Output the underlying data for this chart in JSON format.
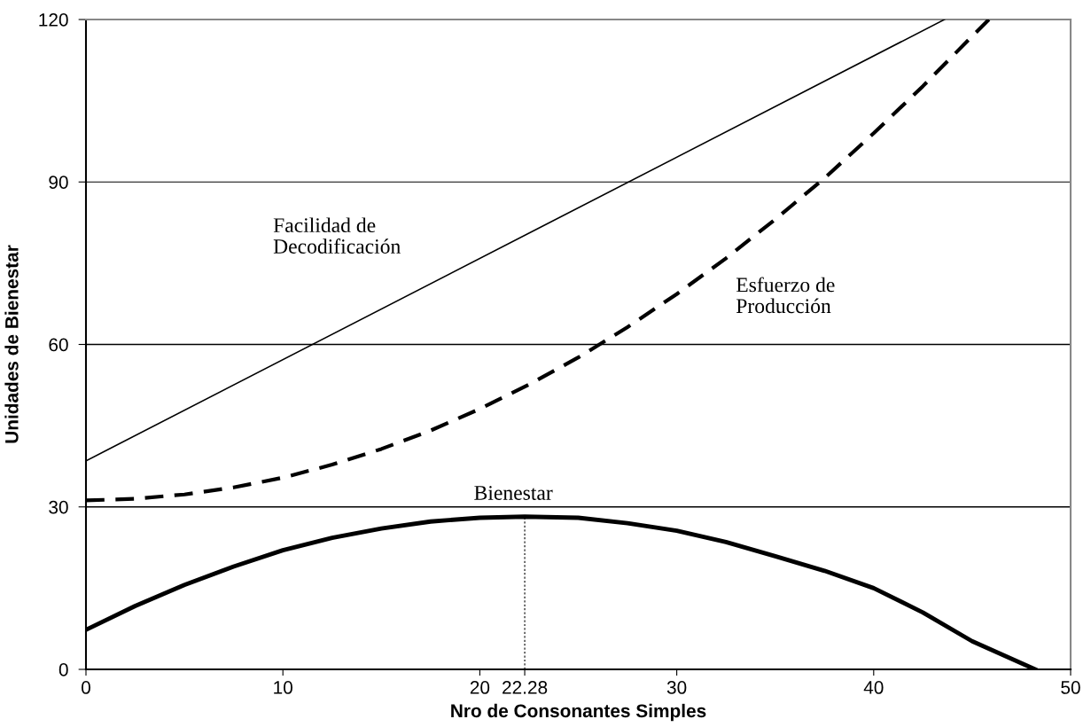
{
  "chart_data": {
    "type": "line",
    "xlabel": "Nro de Consonantes Simples",
    "ylabel": "Unidades de Bienestar",
    "xlim": [
      0,
      50
    ],
    "xticks": [
      0,
      10,
      20,
      22.28,
      30,
      40,
      50
    ],
    "ylim": [
      0,
      120
    ],
    "yticks": [
      0,
      30,
      60,
      90,
      120
    ],
    "grid": "y",
    "marker": "none",
    "series": [
      {
        "name": "Facilidad de Decodificación",
        "color": "#000000",
        "line_style": "solid",
        "x": [
          0,
          43.6
        ],
        "values": [
          38.5,
          120
        ]
      },
      {
        "name": "Esfuerzo de Producción",
        "color": "#000000",
        "line_style": "dashed",
        "x": [
          0,
          2.5,
          5,
          7.5,
          10,
          12.5,
          15,
          17.5,
          20,
          22.5,
          25,
          27.5,
          30,
          32.5,
          35,
          37.5,
          40,
          42.5,
          45,
          45.85
        ],
        "values": [
          31.2,
          31.5,
          32.3,
          33.6,
          35.4,
          37.8,
          40.7,
          44.1,
          48.1,
          52.6,
          57.6,
          63.2,
          69.3,
          75.9,
          83.1,
          90.7,
          99.0,
          107.7,
          116.9,
          120
        ]
      },
      {
        "name": "Bienestar",
        "color": "#000000",
        "line_style": "solid",
        "x": [
          0,
          2.5,
          5,
          7.5,
          10,
          12.5,
          15,
          17.5,
          20,
          22.28,
          25,
          27.5,
          30,
          32.5,
          35,
          37.5,
          40,
          42.5,
          45,
          48.2
        ],
        "values": [
          7.3,
          11.7,
          15.6,
          19.0,
          22.0,
          24.3,
          26.0,
          27.3,
          28.0,
          28.2,
          28.0,
          27.0,
          25.6,
          23.5,
          20.9,
          18.2,
          15.0,
          10.5,
          5.2,
          0
        ]
      },
      {
        "color": "#000000",
        "line_style": "dashed",
        "x": [
          22.28,
          22.28
        ],
        "values": [
          0,
          28.2
        ]
      }
    ]
  }
}
